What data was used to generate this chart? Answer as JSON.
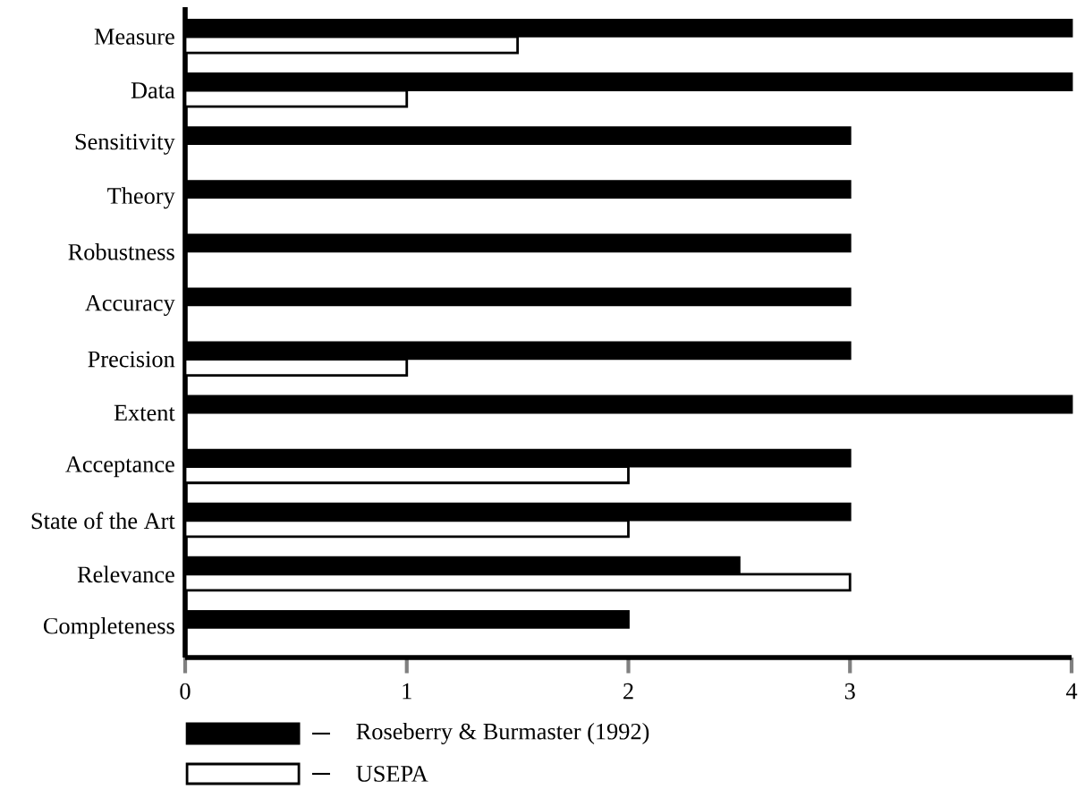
{
  "chart_data": {
    "type": "bar",
    "orientation": "horizontal",
    "categories": [
      "Measure",
      "Data",
      "Sensitivity",
      "Theory",
      "Robustness",
      "Accuracy",
      "Precision",
      "Extent",
      "Acceptance",
      "State of the Art",
      "Relevance",
      "Completeness"
    ],
    "series": [
      {
        "name": "Roseberry & Burmaster (1992)",
        "color": "#000000",
        "values": [
          4,
          4,
          3,
          3,
          3,
          3,
          3,
          4,
          3,
          3,
          2.5,
          2
        ]
      },
      {
        "name": "USEPA",
        "color": "#ffffff",
        "values": [
          1.5,
          1,
          null,
          null,
          null,
          null,
          1,
          null,
          2,
          2,
          3,
          null
        ]
      }
    ],
    "xlim": [
      0,
      4
    ],
    "xticks": [
      0,
      1,
      2,
      3,
      4
    ],
    "legend": "bottom",
    "grid": false
  }
}
